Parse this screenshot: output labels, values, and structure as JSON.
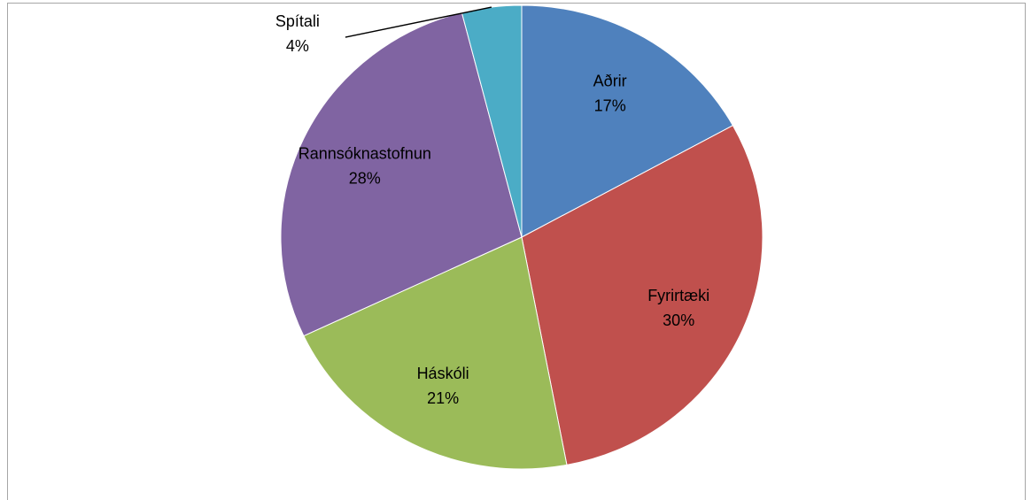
{
  "chart_data": {
    "type": "pie",
    "categories": [
      "Aðrir",
      "Fyrirtæki",
      "Háskóli",
      "Rannsóknastofnun",
      "Spítali"
    ],
    "values": [
      17,
      30,
      21,
      28,
      4
    ],
    "value_labels": [
      "17%",
      "30%",
      "21%",
      "28%",
      "4%"
    ],
    "colors": [
      "#4f81bd",
      "#c0504d",
      "#9bbb59",
      "#8064a2",
      "#4bacc6"
    ]
  }
}
